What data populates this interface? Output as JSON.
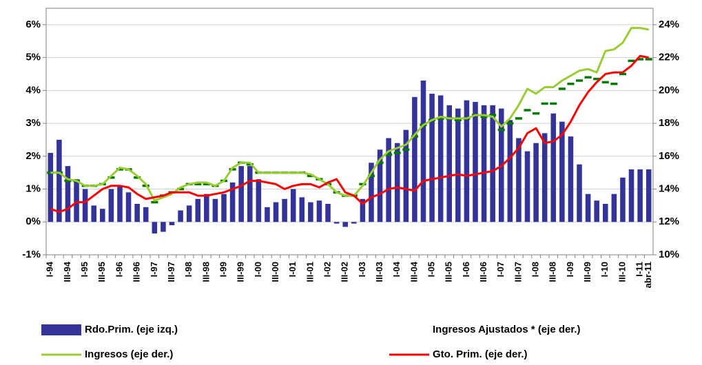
{
  "chart_data": {
    "type": "bar",
    "categories": [
      "I-94",
      null,
      "III-94",
      null,
      "I-95",
      null,
      "III-95",
      null,
      "I-96",
      null,
      "III-96",
      null,
      "I-97",
      null,
      "III-97",
      null,
      "I-98",
      null,
      "III-98",
      null,
      "I-99",
      null,
      "III-99",
      null,
      "I-00",
      null,
      "III-00",
      null,
      "I-01",
      null,
      "III-01",
      null,
      "I-02",
      null,
      "III-02",
      null,
      "I-03",
      null,
      "III-03",
      null,
      "I-04",
      null,
      "III-04",
      null,
      "I-05",
      null,
      "III-05",
      null,
      "I-06",
      null,
      "III-06",
      null,
      "I-07",
      null,
      "III-07",
      null,
      "I-08",
      null,
      "III-08",
      null,
      "I-09",
      null,
      "III-09",
      null,
      "I-10",
      null,
      "III-10",
      null,
      "I-11",
      "abr-11"
    ],
    "series": [
      {
        "name": "Rdo.Prim. (eje izq.)",
        "type": "bar",
        "color": "#33339a",
        "values": [
          2.1,
          2.5,
          1.7,
          1.3,
          1.0,
          0.5,
          0.4,
          1.0,
          1.1,
          0.9,
          0.55,
          0.45,
          -0.35,
          -0.3,
          -0.1,
          0.35,
          0.5,
          0.7,
          0.85,
          0.7,
          0.85,
          1.2,
          1.7,
          1.7,
          1.3,
          0.45,
          0.6,
          0.7,
          1.0,
          0.75,
          0.6,
          0.65,
          0.55,
          -0.05,
          -0.15,
          -0.05,
          0.7,
          1.8,
          2.2,
          2.55,
          2.4,
          2.8,
          3.8,
          4.3,
          3.9,
          3.85,
          3.55,
          3.45,
          3.7,
          3.65,
          3.55,
          3.55,
          3.45,
          3.1,
          2.55,
          2.15,
          2.4,
          2.7,
          3.3,
          3.05,
          2.6,
          1.75,
          0.85,
          0.65,
          0.55,
          0.85,
          1.35,
          1.6,
          1.6,
          1.6
        ]
      },
      {
        "name": "Ingresos Ajustados * (eje der.)",
        "type": "dash",
        "axis": "y2",
        "color": "#007a00",
        "values": [
          15.0,
          15.0,
          14.5,
          14.5,
          14.2,
          14.2,
          14.3,
          14.7,
          15.2,
          15.2,
          14.7,
          14.2,
          13.2,
          13.6,
          13.8,
          14.0,
          14.3,
          14.3,
          14.3,
          14.2,
          14.5,
          15.2,
          15.6,
          15.5,
          15.0,
          15.0,
          15.0,
          15.0,
          15.0,
          15.0,
          14.8,
          14.6,
          14.3,
          13.8,
          13.6,
          13.6,
          14.3,
          14.8,
          15.6,
          16.1,
          16.2,
          16.4,
          17.2,
          17.9,
          18.2,
          18.3,
          18.3,
          18.2,
          18.3,
          18.5,
          18.4,
          18.5,
          17.6,
          18.0,
          18.3,
          18.8,
          18.6,
          19.2,
          19.2,
          20.1,
          20.4,
          20.6,
          20.8,
          20.7,
          20.5,
          20.4,
          21.0,
          21.8,
          21.9,
          21.9
        ]
      },
      {
        "name": "Ingresos (eje der.)",
        "type": "line",
        "axis": "y2",
        "color": "#99cc33",
        "values": [
          15.0,
          15.0,
          14.6,
          14.5,
          14.2,
          14.2,
          14.3,
          14.8,
          15.3,
          15.2,
          14.8,
          14.3,
          13.3,
          13.5,
          13.7,
          14.1,
          14.3,
          14.4,
          14.4,
          14.2,
          14.5,
          15.3,
          15.6,
          15.6,
          15.0,
          15.0,
          15.0,
          15.0,
          15.0,
          15.0,
          14.9,
          14.6,
          14.3,
          13.8,
          13.6,
          13.6,
          14.2,
          15.0,
          15.8,
          16.3,
          16.5,
          16.7,
          17.3,
          17.9,
          18.2,
          18.4,
          18.3,
          18.3,
          18.3,
          18.5,
          18.5,
          18.4,
          17.8,
          18.3,
          19.1,
          20.1,
          19.8,
          20.2,
          20.2,
          20.6,
          20.9,
          21.2,
          21.3,
          21.1,
          22.4,
          22.5,
          22.9,
          23.8,
          23.8,
          23.7
        ]
      },
      {
        "name": "Gto. Prim. (eje der.)",
        "type": "line",
        "axis": "y2",
        "color": "#ff0000",
        "values": [
          12.8,
          12.6,
          12.8,
          13.2,
          13.2,
          13.6,
          14.0,
          14.2,
          14.2,
          14.1,
          13.7,
          13.4,
          13.5,
          13.6,
          13.8,
          13.8,
          13.8,
          13.6,
          13.6,
          13.7,
          13.8,
          14.0,
          14.2,
          14.5,
          14.5,
          14.4,
          14.3,
          14.0,
          14.2,
          14.3,
          14.3,
          14.1,
          14.4,
          14.6,
          13.8,
          13.6,
          13.1,
          13.5,
          13.7,
          14.0,
          14.1,
          14.0,
          13.9,
          14.5,
          14.6,
          14.7,
          14.8,
          14.9,
          14.8,
          14.9,
          15.0,
          15.1,
          15.4,
          15.9,
          16.5,
          17.4,
          17.7,
          16.8,
          16.9,
          17.3,
          18.1,
          19.1,
          19.9,
          20.5,
          21.0,
          21.1,
          21.1,
          21.5,
          22.1,
          22.0
        ]
      }
    ],
    "ylim": [
      -1,
      6.5
    ],
    "yticks": [
      {
        "value": -1,
        "label": "-1%"
      },
      {
        "value": 0,
        "label": "0%"
      },
      {
        "value": 1,
        "label": "1%"
      },
      {
        "value": 2,
        "label": "2%"
      },
      {
        "value": 3,
        "label": "3%"
      },
      {
        "value": 4,
        "label": "4%"
      },
      {
        "value": 5,
        "label": "5%"
      },
      {
        "value": 6,
        "label": "6%"
      }
    ],
    "y2lim": [
      10,
      25
    ],
    "y2ticks": [
      {
        "value": 10,
        "label": "10%"
      },
      {
        "value": 12,
        "label": "12%"
      },
      {
        "value": 14,
        "label": "14%"
      },
      {
        "value": 16,
        "label": "16%"
      },
      {
        "value": 18,
        "label": "18%"
      },
      {
        "value": 20,
        "label": "20%"
      },
      {
        "value": 22,
        "label": "22%"
      },
      {
        "value": 24,
        "label": "24%"
      }
    ],
    "grid": true,
    "legend": "bottom"
  }
}
